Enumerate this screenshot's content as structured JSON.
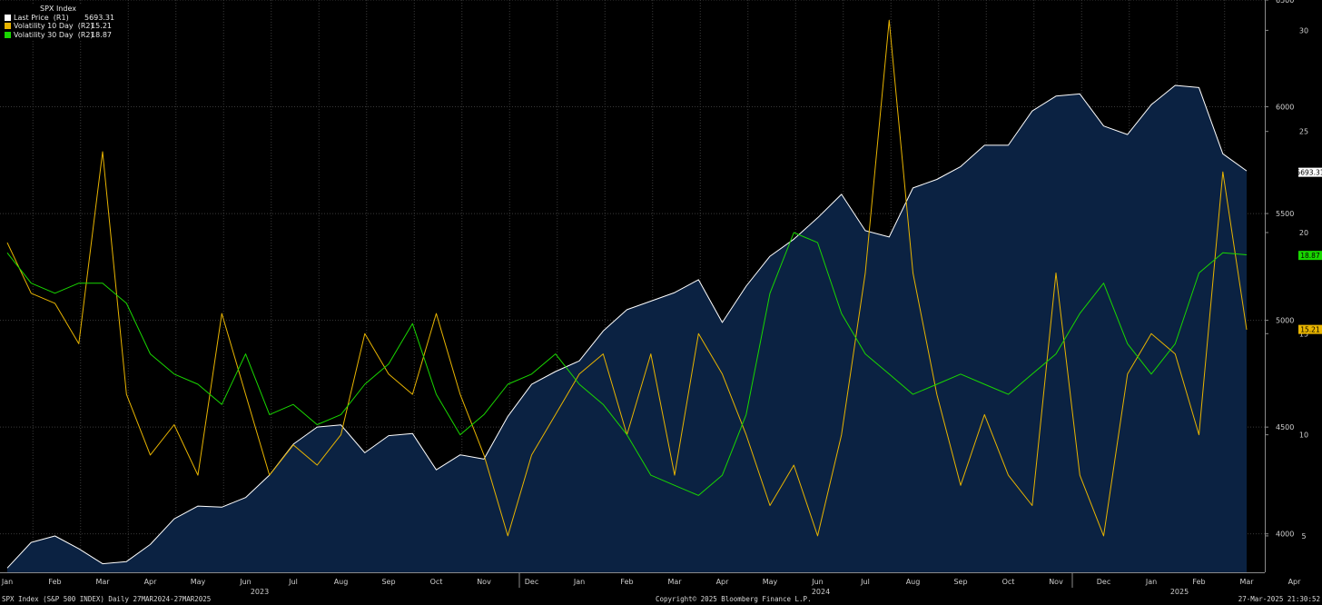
{
  "legend": {
    "title": "SPX Index",
    "items": [
      {
        "label": "Last Price  (R1)",
        "value": "5693.31",
        "color": "#ffffff"
      },
      {
        "label": "Volatility 10 Day  (R2)",
        "value": "15.21",
        "color": "#e8b400"
      },
      {
        "label": "Volatility 30 Day  (R2)",
        "value": "18.87",
        "color": "#19d700"
      }
    ]
  },
  "footer": {
    "left": "SPX Index (S&P 500 INDEX)  Daily 27MAR2024-27MAR2025",
    "center": "Copyright© 2025 Bloomberg Finance L.P.",
    "right": "27-Mar-2025 21:30:52"
  },
  "chart_data": {
    "type": "line",
    "price_axis": {
      "ticks": [
        "6500",
        "6000",
        "5500",
        "5000",
        "4500",
        "4000"
      ],
      "range": [
        3820,
        6500
      ]
    },
    "vol_axis": {
      "ticks": [
        "30",
        "25",
        "20",
        "15",
        "10",
        "5"
      ],
      "range": [
        3.2,
        31.5
      ]
    },
    "x_axis": {
      "months": [
        "Jan",
        "Feb",
        "Mar",
        "Apr",
        "May",
        "Jun",
        "Jul",
        "Aug",
        "Sep",
        "Oct",
        "Nov",
        "Dec",
        "Jan",
        "Feb",
        "Mar",
        "Apr",
        "May",
        "Jun",
        "Jul",
        "Aug",
        "Sep",
        "Oct",
        "Nov",
        "Dec",
        "Jan",
        "Feb",
        "Mar",
        "Apr"
      ],
      "years": [
        "2023",
        "2024",
        "2025"
      ]
    },
    "markers": {
      "price": "5693.31",
      "vol10": "15.21",
      "vol30": "18.87"
    },
    "series": [
      {
        "name": "Last Price",
        "axis": "price",
        "color": "#ffffff",
        "points": [
          [
            0,
            3840
          ],
          [
            0.5,
            3960
          ],
          [
            1,
            3990
          ],
          [
            1.5,
            3930
          ],
          [
            2,
            3860
          ],
          [
            2.5,
            3870
          ],
          [
            3,
            3950
          ],
          [
            3.5,
            4070
          ],
          [
            4,
            4130
          ],
          [
            4.5,
            4125
          ],
          [
            5,
            4170
          ],
          [
            5.5,
            4275
          ],
          [
            6,
            4420
          ],
          [
            6.5,
            4500
          ],
          [
            7,
            4510
          ],
          [
            7.5,
            4380
          ],
          [
            8,
            4460
          ],
          [
            8.5,
            4470
          ],
          [
            9,
            4300
          ],
          [
            9.5,
            4370
          ],
          [
            10,
            4350
          ],
          [
            10.5,
            4550
          ],
          [
            11,
            4700
          ],
          [
            11.5,
            4760
          ],
          [
            12,
            4810
          ],
          [
            12.5,
            4950
          ],
          [
            13,
            5050
          ],
          [
            13.5,
            5090
          ],
          [
            14,
            5130
          ],
          [
            14.5,
            5190
          ],
          [
            15,
            4990
          ],
          [
            15.5,
            5160
          ],
          [
            16,
            5300
          ],
          [
            16.5,
            5380
          ],
          [
            17,
            5480
          ],
          [
            17.5,
            5590
          ],
          [
            18,
            5420
          ],
          [
            18.5,
            5390
          ],
          [
            19,
            5620
          ],
          [
            19.5,
            5660
          ],
          [
            20,
            5720
          ],
          [
            20.5,
            5820
          ],
          [
            21,
            5820
          ],
          [
            21.5,
            5980
          ],
          [
            22,
            6050
          ],
          [
            22.5,
            6060
          ],
          [
            23,
            5910
          ],
          [
            23.5,
            5870
          ],
          [
            24,
            6010
          ],
          [
            24.5,
            6100
          ],
          [
            25,
            6090
          ],
          [
            25.5,
            5780
          ],
          [
            26,
            5700
          ]
        ]
      },
      {
        "name": "Volatility 10 Day",
        "axis": "vol",
        "color": "#e8b400",
        "points": [
          [
            0,
            19.5
          ],
          [
            0.5,
            17
          ],
          [
            1,
            16.5
          ],
          [
            1.5,
            14.5
          ],
          [
            2,
            24
          ],
          [
            2.5,
            12
          ],
          [
            3,
            9
          ],
          [
            3.5,
            10.5
          ],
          [
            4,
            8
          ],
          [
            4.5,
            16
          ],
          [
            5,
            12
          ],
          [
            5.5,
            8
          ],
          [
            6,
            9.5
          ],
          [
            6.5,
            8.5
          ],
          [
            7,
            10
          ],
          [
            7.5,
            15
          ],
          [
            8,
            13
          ],
          [
            8.5,
            12
          ],
          [
            9,
            16
          ],
          [
            9.5,
            12
          ],
          [
            10,
            9
          ],
          [
            10.5,
            5
          ],
          [
            11,
            9
          ],
          [
            11.5,
            11
          ],
          [
            12,
            13
          ],
          [
            12.5,
            14
          ],
          [
            13,
            10
          ],
          [
            13.5,
            14
          ],
          [
            14,
            8
          ],
          [
            14.5,
            15
          ],
          [
            15,
            13
          ],
          [
            15.5,
            10
          ],
          [
            16,
            6.5
          ],
          [
            16.5,
            8.5
          ],
          [
            17,
            5
          ],
          [
            17.5,
            10
          ],
          [
            18,
            18
          ],
          [
            18.5,
            30.5
          ],
          [
            19,
            18
          ],
          [
            19.5,
            12
          ],
          [
            20,
            7.5
          ],
          [
            20.5,
            11
          ],
          [
            21,
            8
          ],
          [
            21.5,
            6.5
          ],
          [
            22,
            18
          ],
          [
            22.5,
            8
          ],
          [
            23,
            5
          ],
          [
            23.5,
            13
          ],
          [
            24,
            15
          ],
          [
            24.5,
            14
          ],
          [
            25,
            10
          ],
          [
            25.5,
            23
          ],
          [
            26,
            15.2
          ]
        ]
      },
      {
        "name": "Volatility 30 Day",
        "axis": "vol",
        "color": "#19d700",
        "points": [
          [
            0,
            19
          ],
          [
            0.5,
            17.5
          ],
          [
            1,
            17
          ],
          [
            1.5,
            17.5
          ],
          [
            2,
            17.5
          ],
          [
            2.5,
            16.5
          ],
          [
            3,
            14
          ],
          [
            3.5,
            13
          ],
          [
            4,
            12.5
          ],
          [
            4.5,
            11.5
          ],
          [
            5,
            14
          ],
          [
            5.5,
            11
          ],
          [
            6,
            11.5
          ],
          [
            6.5,
            10.5
          ],
          [
            7,
            11
          ],
          [
            7.5,
            12.5
          ],
          [
            8,
            13.5
          ],
          [
            8.5,
            15.5
          ],
          [
            9,
            12
          ],
          [
            9.5,
            10
          ],
          [
            10,
            11
          ],
          [
            10.5,
            12.5
          ],
          [
            11,
            13
          ],
          [
            11.5,
            14
          ],
          [
            12,
            12.5
          ],
          [
            12.5,
            11.5
          ],
          [
            13,
            10
          ],
          [
            13.5,
            8
          ],
          [
            14,
            7.5
          ],
          [
            14.5,
            7
          ],
          [
            15,
            8
          ],
          [
            15.5,
            11
          ],
          [
            16,
            17
          ],
          [
            16.5,
            20
          ],
          [
            17,
            19.5
          ],
          [
            17.5,
            16
          ],
          [
            18,
            14
          ],
          [
            18.5,
            13
          ],
          [
            19,
            12
          ],
          [
            19.5,
            12.5
          ],
          [
            20,
            13
          ],
          [
            20.5,
            12.5
          ],
          [
            21,
            12
          ],
          [
            21.5,
            13
          ],
          [
            22,
            14
          ],
          [
            22.5,
            16
          ],
          [
            23,
            17.5
          ],
          [
            23.5,
            14.5
          ],
          [
            24,
            13
          ],
          [
            24.5,
            14.5
          ],
          [
            25,
            18
          ],
          [
            25.5,
            19
          ],
          [
            26,
            18.9
          ]
        ]
      }
    ]
  }
}
